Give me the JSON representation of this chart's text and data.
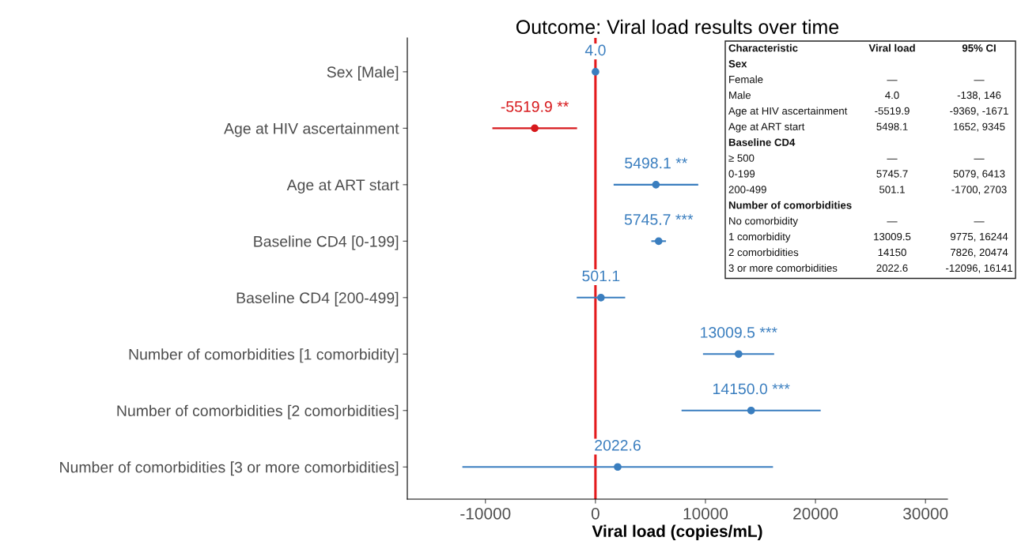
{
  "chart_data": {
    "type": "scatter",
    "orientation": "horizontal",
    "title": "Outcome: Viral load results over time",
    "xlabel": "Viral load (copies/mL)",
    "categories": [
      "Sex [Male]",
      "Age at HIV ascertainment",
      "Age at ART start",
      "Baseline CD4 [0-199]",
      "Baseline CD4 [200-499]",
      "Number of comorbidities [1 comorbidity]",
      "Number of comorbidities [2 comorbidities]",
      "Number of comorbidities [3 or more comorbidities]"
    ],
    "series": [
      {
        "values": [
          4.0,
          -5519.9,
          5498.1,
          5745.7,
          501.1,
          13009.5,
          14150.0,
          2022.6
        ],
        "errors": [
          [
            -138,
            146
          ],
          [
            -9369,
            -1671
          ],
          [
            1652,
            9345
          ],
          [
            5079,
            6413
          ],
          [
            -1700,
            2703
          ],
          [
            9775,
            16244
          ],
          [
            7826,
            20474
          ],
          [
            -12096,
            16141
          ]
        ],
        "colors": [
          "#3a7ebf",
          "#d7191c",
          "#3a7ebf",
          "#3a7ebf",
          "#3a7ebf",
          "#3a7ebf",
          "#3a7ebf",
          "#3a7ebf"
        ],
        "value_labels": [
          "4.0",
          "-5519.9 **",
          "5498.1 **",
          "5745.7 ***",
          "501.1",
          "13009.5 ***",
          "14150.0 ***",
          "2022.6"
        ]
      }
    ],
    "xlim": [
      -17100,
      32000
    ],
    "xticks": [
      -10000,
      0,
      10000,
      20000,
      30000
    ],
    "ref_lines": [
      {
        "axis": "x",
        "value": 0,
        "color": "#e41a1c"
      }
    ],
    "grid": false,
    "marker": "circle",
    "annotations": [
      "Characteristic",
      "Viral load",
      "95% CI",
      "Sex",
      null,
      null,
      "Female",
      "—",
      "—",
      "Male",
      "4.0",
      "-138, 146",
      "Age at HIV ascertainment",
      "-5519.9",
      "-9369, -1671",
      "Age at ART start",
      "5498.1",
      "1652, 9345",
      "Baseline CD4",
      null,
      null,
      "≥ 500",
      "—",
      "—",
      "0-199",
      "5745.7",
      "5079, 6413",
      "200-499",
      "501.1",
      "-1700, 2703",
      "Number of comorbidities",
      null,
      null,
      "No comorbidity",
      "—",
      "—",
      "1 comorbidity",
      "13009.5",
      "9775, 16244",
      "2 comorbidities",
      "14150",
      "7826, 20474",
      "3 or more comorbidities",
      "2022.6",
      "-12096, 16141"
    ]
  }
}
